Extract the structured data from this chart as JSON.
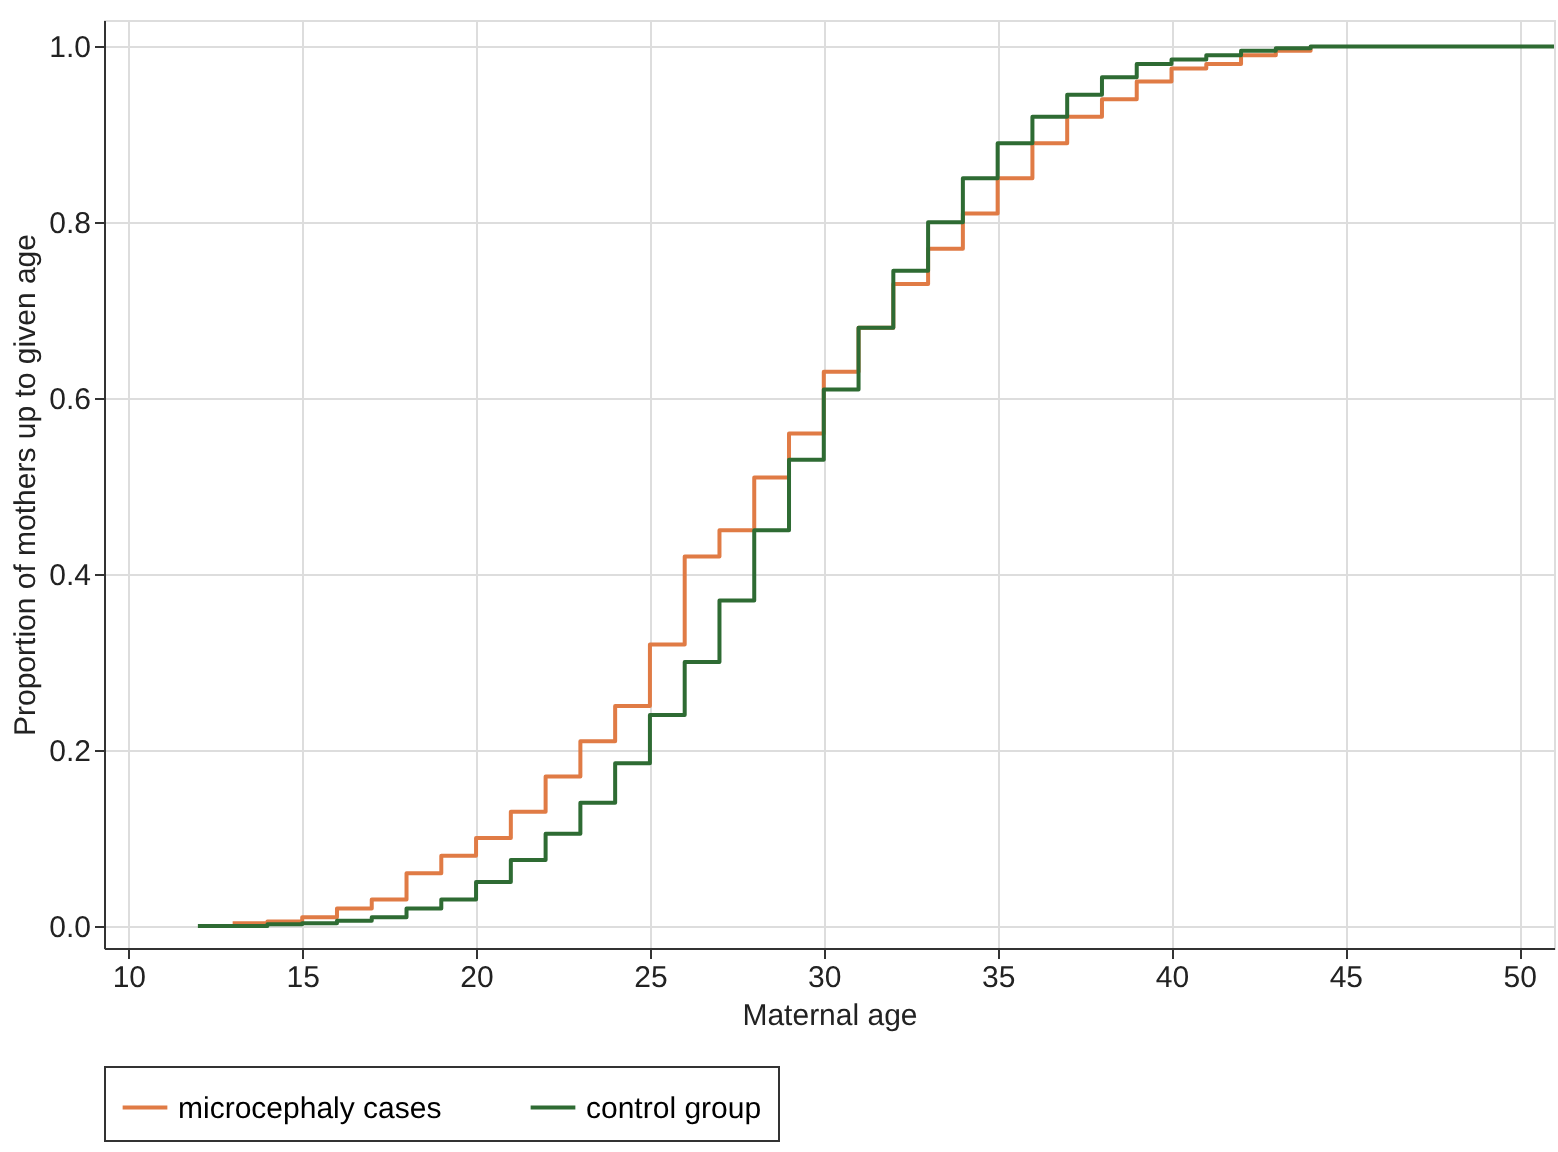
{
  "chart_data": {
    "type": "step",
    "xlabel": "Maternal age",
    "ylabel": "Proportion of mothers up to given age",
    "xlim": [
      9.3,
      51
    ],
    "ylim": [
      -0.025,
      1.03
    ],
    "xticks": [
      10,
      15,
      20,
      25,
      30,
      35,
      40,
      45,
      50
    ],
    "yticks": [
      {
        "value": 0,
        "label": "0.0"
      },
      {
        "value": 0.2,
        "label": "0.2"
      },
      {
        "value": 0.4,
        "label": "0.4"
      },
      {
        "value": 0.6,
        "label": "0.6"
      },
      {
        "value": 0.8,
        "label": "0.8"
      },
      {
        "value": 1,
        "label": "1.0"
      }
    ],
    "grid": true,
    "legend": "bottom",
    "line_style": "solid",
    "marker": "none",
    "series": [
      {
        "name": "microcephaly cases",
        "color": "#e07b45",
        "x": [
          13,
          14,
          15,
          16,
          17,
          18,
          19,
          20,
          21,
          22,
          23,
          24,
          25,
          26,
          27,
          28,
          29,
          30,
          31,
          32,
          33,
          34,
          35,
          36,
          37,
          38,
          39,
          40,
          41,
          42,
          43,
          44
        ],
        "values": [
          0.003,
          0.005,
          0.01,
          0.02,
          0.03,
          0.06,
          0.08,
          0.1,
          0.13,
          0.17,
          0.21,
          0.25,
          0.32,
          0.42,
          0.45,
          0.51,
          0.56,
          0.63,
          0.68,
          0.73,
          0.77,
          0.81,
          0.85,
          0.89,
          0.92,
          0.94,
          0.96,
          0.975,
          0.98,
          0.99,
          0.995,
          1.0
        ]
      },
      {
        "name": "control group",
        "color": "#2e6b33",
        "x": [
          12,
          13,
          14,
          15,
          16,
          17,
          18,
          19,
          20,
          21,
          22,
          23,
          24,
          25,
          26,
          27,
          28,
          29,
          30,
          31,
          32,
          33,
          34,
          35,
          36,
          37,
          38,
          39,
          40,
          41,
          42,
          43,
          44,
          51
        ],
        "values": [
          0.0,
          0.0,
          0.002,
          0.003,
          0.006,
          0.01,
          0.02,
          0.03,
          0.05,
          0.075,
          0.105,
          0.14,
          0.185,
          0.24,
          0.3,
          0.37,
          0.45,
          0.53,
          0.61,
          0.68,
          0.745,
          0.8,
          0.85,
          0.89,
          0.92,
          0.945,
          0.965,
          0.98,
          0.985,
          0.99,
          0.995,
          0.998,
          1.0,
          1.0
        ]
      }
    ]
  }
}
